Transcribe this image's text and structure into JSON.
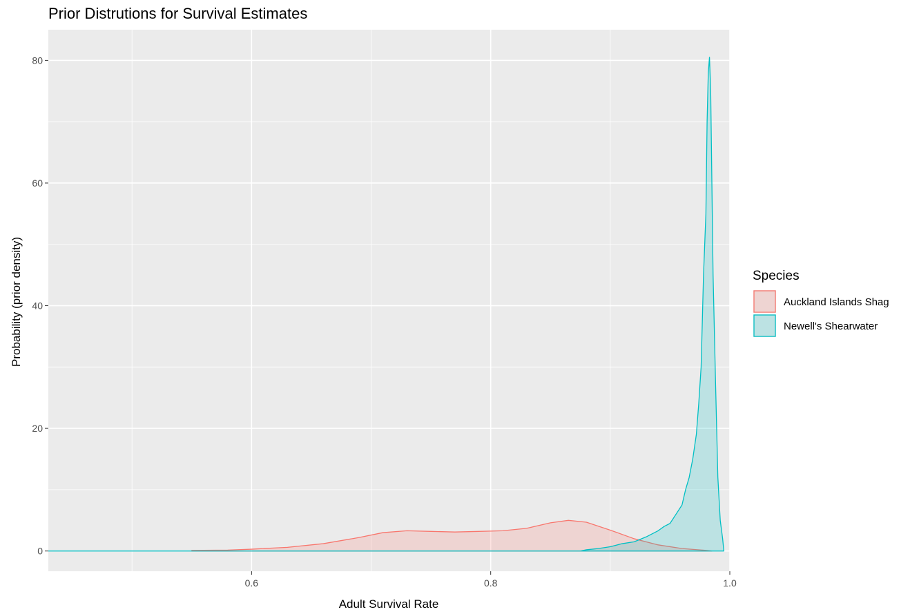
{
  "chart_data": {
    "type": "area",
    "title": "Prior Distrutions for Survival Estimates",
    "xlabel": "Adult Survival Rate",
    "ylabel": "Probability (prior density)",
    "xlim": [
      0.43,
      1.0
    ],
    "ylim": [
      -3.3,
      85.0
    ],
    "x_ticks": [
      0.6,
      0.8,
      1.0
    ],
    "x_tick_labels": [
      "0.6",
      "0.8",
      "1.0"
    ],
    "y_ticks": [
      0,
      20,
      40,
      60,
      80
    ],
    "y_tick_labels": [
      "0",
      "20",
      "40",
      "60",
      "80"
    ],
    "grid": true,
    "legend": {
      "title": "Species",
      "position": "right"
    },
    "series": [
      {
        "name": "Auckland Islands Shag",
        "line_color": "#F8766D",
        "fill_color": "#F8766D",
        "x": [
          0.55,
          0.58,
          0.6,
          0.63,
          0.66,
          0.69,
          0.71,
          0.73,
          0.75,
          0.77,
          0.79,
          0.81,
          0.83,
          0.85,
          0.865,
          0.88,
          0.9,
          0.92,
          0.94,
          0.96,
          0.98,
          0.985
        ],
        "y": [
          0.1,
          0.15,
          0.3,
          0.6,
          1.2,
          2.2,
          3.0,
          3.3,
          3.2,
          3.1,
          3.2,
          3.3,
          3.7,
          4.6,
          5.0,
          4.7,
          3.4,
          2.0,
          1.0,
          0.4,
          0.1,
          0.0
        ]
      },
      {
        "name": "Newell's Shearwater",
        "line_color": "#00BFC4",
        "fill_color": "#00BFC4",
        "x": [
          0.43,
          0.6,
          0.8,
          0.875,
          0.88,
          0.89,
          0.9,
          0.91,
          0.92,
          0.93,
          0.94,
          0.945,
          0.95,
          0.955,
          0.96,
          0.963,
          0.966,
          0.969,
          0.972,
          0.974,
          0.976,
          0.978,
          0.98,
          0.981,
          0.982,
          0.983,
          0.984,
          0.985,
          0.986,
          0.988,
          0.99,
          0.992,
          0.994,
          0.995
        ],
        "y": [
          0.0,
          0.0,
          0.0,
          0.0,
          0.2,
          0.4,
          0.7,
          1.2,
          1.5,
          2.3,
          3.3,
          4.0,
          4.5,
          6.0,
          7.5,
          10.0,
          12.0,
          15.0,
          19.0,
          24.0,
          30.0,
          45.0,
          55.0,
          70.0,
          78.0,
          80.5,
          75.0,
          60.0,
          45.0,
          28.0,
          12.0,
          5.0,
          2.0,
          0.0
        ]
      }
    ]
  }
}
